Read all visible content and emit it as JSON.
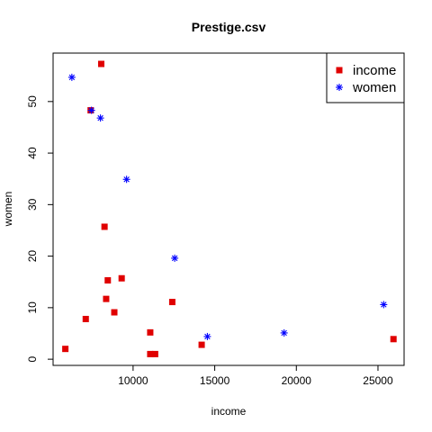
{
  "chart_data": {
    "type": "scatter",
    "title": "Prestige.csv",
    "xlabel": "income",
    "ylabel": "women",
    "xlim": [
      5100,
      26600
    ],
    "ylim": [
      -1.2,
      59.4
    ],
    "xticks": [
      10000,
      15000,
      20000,
      25000
    ],
    "yticks": [
      0,
      10,
      20,
      30,
      40,
      50
    ],
    "legend_position": "top-right",
    "grid": false,
    "series": [
      {
        "name": "income",
        "color": "#e00000",
        "marker": "square",
        "points": [
          {
            "x": 8050,
            "y": 57.3
          },
          {
            "x": 7400,
            "y": 48.3
          },
          {
            "x": 8250,
            "y": 25.7
          },
          {
            "x": 9300,
            "y": 15.7
          },
          {
            "x": 8450,
            "y": 15.3
          },
          {
            "x": 8350,
            "y": 11.7
          },
          {
            "x": 12400,
            "y": 11.1
          },
          {
            "x": 8850,
            "y": 9.1
          },
          {
            "x": 7100,
            "y": 7.8
          },
          {
            "x": 11050,
            "y": 5.2
          },
          {
            "x": 14200,
            "y": 2.8
          },
          {
            "x": 5850,
            "y": 2.0
          },
          {
            "x": 11050,
            "y": 1.0
          },
          {
            "x": 11350,
            "y": 1.0
          },
          {
            "x": 25950,
            "y": 3.9
          }
        ]
      },
      {
        "name": "women",
        "color": "#0000ff",
        "marker": "asterisk",
        "points": [
          {
            "x": 6250,
            "y": 54.7
          },
          {
            "x": 7450,
            "y": 48.3
          },
          {
            "x": 8000,
            "y": 46.8
          },
          {
            "x": 9600,
            "y": 34.9
          },
          {
            "x": 12550,
            "y": 19.6
          },
          {
            "x": 14550,
            "y": 4.4
          },
          {
            "x": 19250,
            "y": 5.1
          },
          {
            "x": 25350,
            "y": 10.6
          }
        ]
      }
    ]
  }
}
